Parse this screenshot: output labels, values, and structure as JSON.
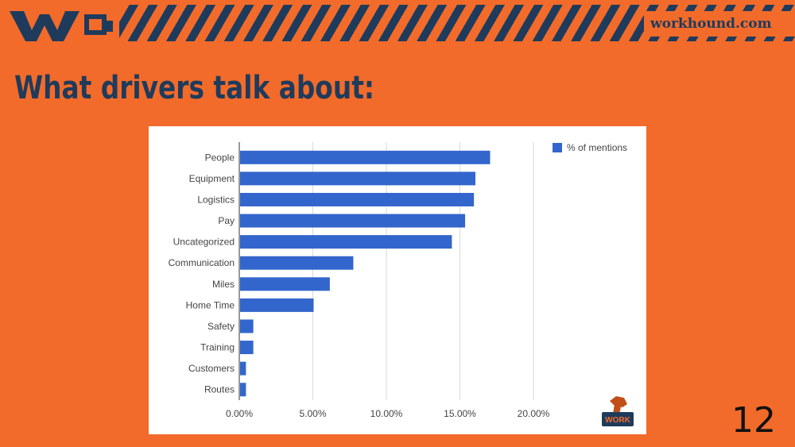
{
  "header": {
    "site": "workhound.com",
    "logo_icon": "workhound-wh-logo"
  },
  "slide": {
    "title": "What drivers talk about:",
    "page_number": "12"
  },
  "colors": {
    "background": "#f26b2a",
    "navy": "#1f3b5c",
    "bar": "#3366cc"
  },
  "chart_data": {
    "type": "bar",
    "orientation": "horizontal",
    "categories": [
      "People",
      "Equipment",
      "Logistics",
      "Pay",
      "Uncategorized",
      "Communication",
      "Miles",
      "Home Time",
      "Safety",
      "Training",
      "Customers",
      "Routes"
    ],
    "series": [
      {
        "name": "% of mentions",
        "values": [
          17.0,
          16.0,
          15.9,
          15.3,
          14.4,
          7.7,
          6.1,
          5.0,
          0.9,
          0.9,
          0.4,
          0.4
        ]
      }
    ],
    "xticks": [
      "0.00%",
      "5.00%",
      "10.00%",
      "15.00%",
      "20.00%"
    ],
    "xlim": [
      0,
      20
    ],
    "grid": true,
    "legend_position": "top-right",
    "corner_logo_text": "WORK"
  }
}
